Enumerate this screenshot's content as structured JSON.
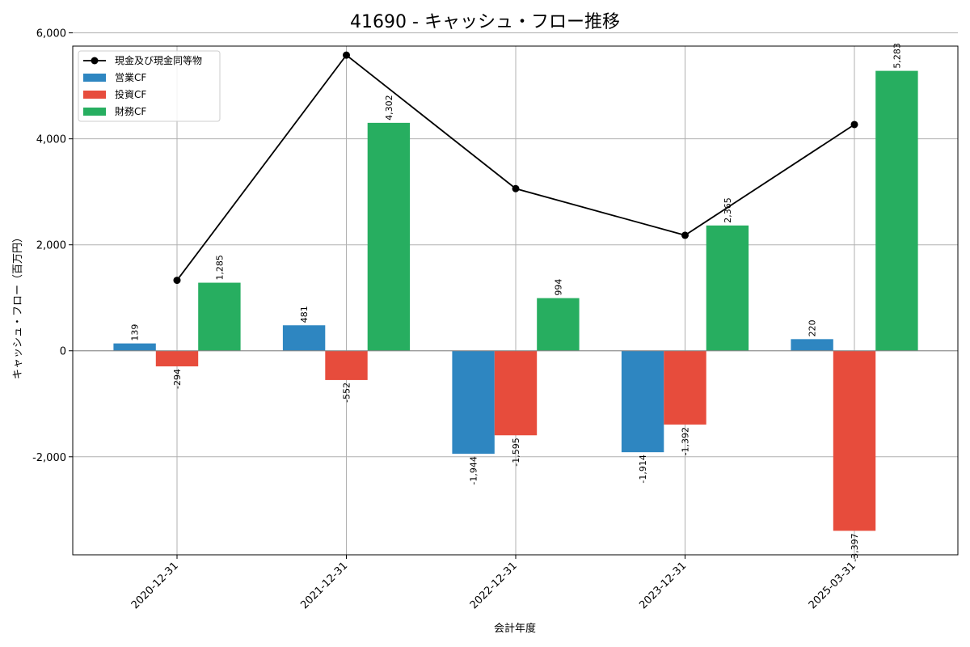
{
  "chart_data": {
    "type": "bar",
    "title": "41690 - キャッシュ・フロー推移",
    "xlabel": "会計年度",
    "ylabel": "キャッシュ・フロー（百万円）",
    "categories": [
      "2020-12-31",
      "2021-12-31",
      "2022-12-31",
      "2023-12-31",
      "2025-03-31"
    ],
    "series": [
      {
        "name": "営業CF",
        "color": "#2e86c1",
        "values": [
          139,
          481,
          -1944,
          -1914,
          220
        ],
        "labels": [
          "139",
          "481",
          "-1,944",
          "-1,914",
          "220"
        ]
      },
      {
        "name": "投資CF",
        "color": "#e74c3c",
        "values": [
          -294,
          -552,
          -1595,
          -1392,
          -3397
        ],
        "labels": [
          "-294",
          "-552",
          "-1,595",
          "-1,392",
          "-3,397"
        ]
      },
      {
        "name": "財務CF",
        "color": "#27ae60",
        "values": [
          1285,
          4302,
          994,
          2365,
          5283
        ],
        "labels": [
          "1,285",
          "4,302",
          "994",
          "2,365",
          "5,283"
        ]
      }
    ],
    "line_series": {
      "name": "現金及び現金同等物",
      "color": "#000000",
      "values": [
        1330,
        5580,
        3060,
        2180,
        4270
      ]
    },
    "ylim": [
      -3850,
      5750
    ],
    "yticks": [
      -2000,
      0,
      2000,
      4000,
      6000
    ],
    "ytick_labels": [
      "-2,000",
      "0",
      "2,000",
      "4,000",
      "6,000"
    ],
    "grid": true,
    "legend_position": "top-left"
  }
}
